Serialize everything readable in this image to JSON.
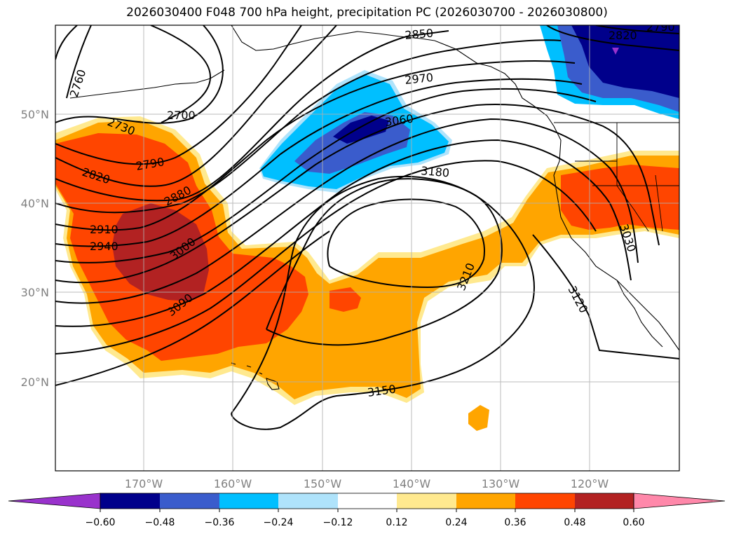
{
  "title": "2026030400 F048 700 hPa height, precipitation PC (2026030700 - 2026030800)",
  "map": {
    "lat_ticks": [
      "50°N",
      "40°N",
      "30°N",
      "20°N"
    ],
    "lon_ticks": [
      "170°W",
      "160°W",
      "150°W",
      "140°W",
      "130°W",
      "120°W"
    ],
    "contour_labels": [
      "2760",
      "2700",
      "2730",
      "2820",
      "2790",
      "2880",
      "2910",
      "2940",
      "3000",
      "3090",
      "2850",
      "2970",
      "3060",
      "3180",
      "3210",
      "3150",
      "3120",
      "3030",
      "2820",
      "2790"
    ],
    "colors": {
      "tick_text": "#808080",
      "grid": "#b0b0b0",
      "contour": "#000000"
    }
  },
  "colorbar": {
    "labels": [
      "−0.60",
      "−0.48",
      "−0.36",
      "−0.24",
      "−0.12",
      "0.12",
      "0.24",
      "0.36",
      "0.48",
      "0.60"
    ],
    "colors": [
      "#9932cc",
      "#00008b",
      "#3a5ccc",
      "#00bfff",
      "#afe3fb",
      "#ffffff",
      "#ffe98f",
      "#ffa500",
      "#ff4500",
      "#b22222",
      "#ff88aa"
    ]
  }
}
